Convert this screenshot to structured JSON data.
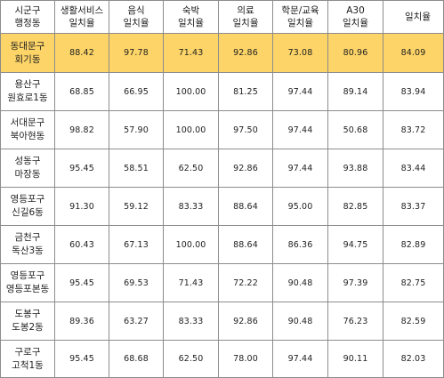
{
  "table": {
    "headers": [
      "시군구\n행정동",
      "생활서비스\n일치율",
      "음식\n일치율",
      "숙박\n일치율",
      "의료\n일치율",
      "학문/교육\n일치율",
      "A30\n일치율",
      "일치율"
    ],
    "highlight_color": "#fdd467",
    "rows": [
      {
        "name": "동대문구\n회기동",
        "values": [
          "88.42",
          "97.78",
          "71.43",
          "92.86",
          "73.08",
          "80.96",
          "84.09"
        ],
        "highlighted": true
      },
      {
        "name": "용산구\n원효로1동",
        "values": [
          "68.85",
          "66.95",
          "100.00",
          "81.25",
          "97.44",
          "89.14",
          "83.94"
        ],
        "highlighted": false
      },
      {
        "name": "서대문구\n북아현동",
        "values": [
          "98.82",
          "57.90",
          "100.00",
          "97.50",
          "97.44",
          "50.68",
          "83.72"
        ],
        "highlighted": false
      },
      {
        "name": "성동구\n마장동",
        "values": [
          "95.45",
          "58.51",
          "62.50",
          "92.86",
          "97.44",
          "93.88",
          "83.44"
        ],
        "highlighted": false
      },
      {
        "name": "영등포구\n신길6동",
        "values": [
          "91.30",
          "59.12",
          "83.33",
          "88.64",
          "95.00",
          "82.85",
          "83.37"
        ],
        "highlighted": false
      },
      {
        "name": "금천구\n독산3동",
        "values": [
          "60.43",
          "67.13",
          "100.00",
          "88.64",
          "86.36",
          "94.75",
          "82.89"
        ],
        "highlighted": false
      },
      {
        "name": "영등포구\n영등포본동",
        "values": [
          "95.45",
          "69.53",
          "71.43",
          "72.22",
          "90.48",
          "97.39",
          "82.75"
        ],
        "highlighted": false
      },
      {
        "name": "도봉구\n도봉2동",
        "values": [
          "89.36",
          "63.27",
          "83.33",
          "92.86",
          "90.48",
          "76.23",
          "82.59"
        ],
        "highlighted": false
      },
      {
        "name": "구로구\n고척1동",
        "values": [
          "95.45",
          "68.68",
          "62.50",
          "78.00",
          "97.44",
          "90.11",
          "82.03"
        ],
        "highlighted": false
      }
    ]
  }
}
